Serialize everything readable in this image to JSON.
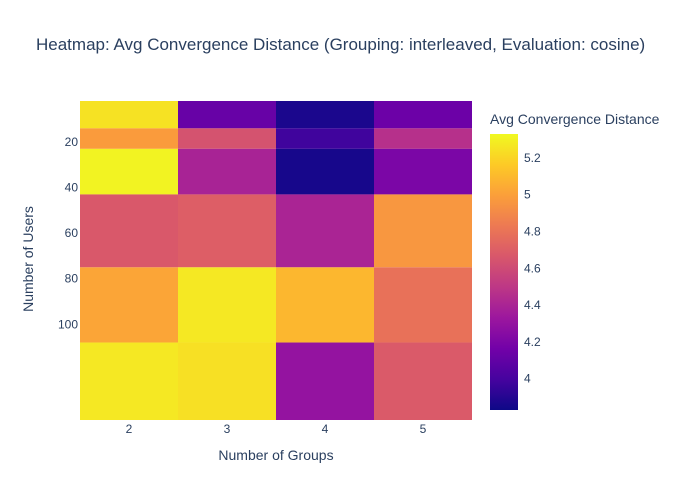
{
  "chart_data": {
    "type": "heatmap",
    "title": "Heatmap: Avg Convergence Distance (Grouping: interleaved, Evaluation: cosine)",
    "xlabel": "Number of Groups",
    "ylabel": "Number of Users",
    "x_categories": [
      2,
      3,
      4,
      5
    ],
    "rows": [
      {
        "y_from": 2,
        "y_to": 14,
        "values": [
          5.25,
          4.12,
          3.87,
          4.14
        ]
      },
      {
        "y_from": 14,
        "y_to": 23,
        "values": [
          4.98,
          4.64,
          3.98,
          4.46
        ]
      },
      {
        "y_from": 23,
        "y_to": 43,
        "values": [
          5.31,
          4.39,
          3.86,
          4.2
        ]
      },
      {
        "y_from": 43,
        "y_to": 75,
        "values": [
          4.67,
          4.7,
          4.4,
          4.96
        ]
      },
      {
        "y_from": 75,
        "y_to": 108,
        "values": [
          5.02,
          5.27,
          5.09,
          4.79
        ]
      },
      {
        "y_from": 108,
        "y_to": 142,
        "values": [
          5.27,
          5.24,
          4.3,
          4.68
        ]
      }
    ],
    "y_ticks": [
      20,
      40,
      60,
      80,
      100
    ],
    "y_range": [
      2,
      142
    ],
    "colorbar": {
      "title": "Avg Convergence Distance",
      "range": [
        3.83,
        5.33
      ],
      "ticks": [
        "4",
        "4.2",
        "4.4",
        "4.6",
        "4.8",
        "5",
        "5.2"
      ],
      "colorscale": [
        "#0d0887",
        "#46039f",
        "#7201a8",
        "#9c179e",
        "#bd3786",
        "#d8576b",
        "#ed7953",
        "#fb9f3a",
        "#fdca26",
        "#f0f921"
      ]
    }
  }
}
